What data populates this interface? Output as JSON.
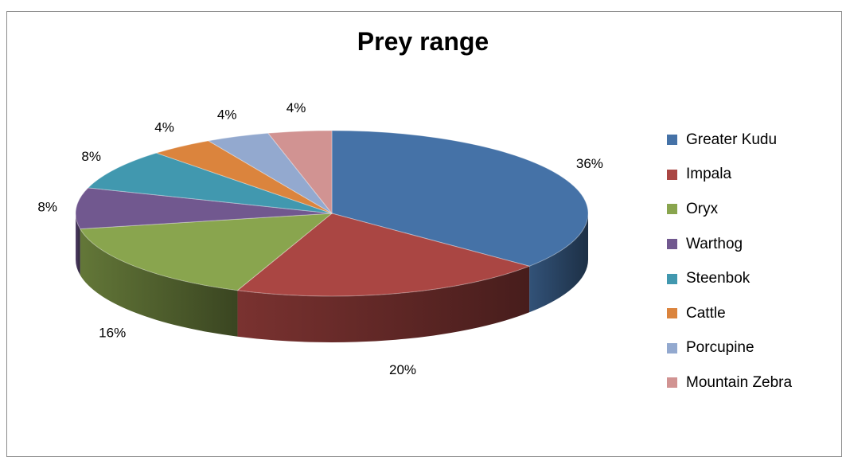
{
  "chart_data": {
    "type": "pie",
    "title": "Prey range",
    "legend_position": "right",
    "three_d": true,
    "slices": [
      {
        "name": "Greater Kudu",
        "value": 36,
        "label": "36%",
        "color": "#4572a7"
      },
      {
        "name": "Impala",
        "value": 20,
        "label": "20%",
        "color": "#aa4643"
      },
      {
        "name": "Oryx",
        "value": 16,
        "label": "16%",
        "color": "#89a54e"
      },
      {
        "name": "Warthog",
        "value": 8,
        "label": "8%",
        "color": "#71588f"
      },
      {
        "name": "Steenbok",
        "value": 8,
        "label": "8%",
        "color": "#4198af"
      },
      {
        "name": "Cattle",
        "value": 4,
        "label": "4%",
        "color": "#db843d"
      },
      {
        "name": "Porcupine",
        "value": 4,
        "label": "4%",
        "color": "#93a9cf"
      },
      {
        "name": "Mountain Zebra",
        "value": 4,
        "label": "4%",
        "color": "#d19392"
      }
    ]
  }
}
